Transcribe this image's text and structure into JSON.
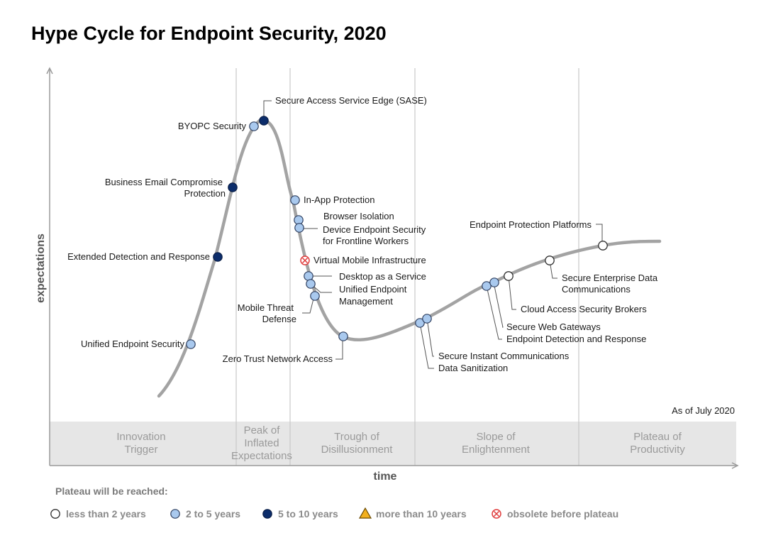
{
  "title": "Hype Cycle for Endpoint Security, 2020",
  "as_of": "As of July 2020",
  "y_axis_label": "expectations",
  "x_axis_label": "time",
  "phases": [
    {
      "lines": [
        "Innovation",
        "Trigger"
      ]
    },
    {
      "lines": [
        "Peak of",
        "Inflated",
        "Expectations"
      ]
    },
    {
      "lines": [
        "Trough of",
        "Disillusionment"
      ]
    },
    {
      "lines": [
        "Slope of",
        "Enlightenment"
      ]
    },
    {
      "lines": [
        "Plateau of",
        "Productivity"
      ]
    }
  ],
  "categories": {
    "lt2": {
      "label": "less than 2 years",
      "color": "#ffffff"
    },
    "2to5": {
      "label": "2 to 5 years",
      "color": "#a9c9ee"
    },
    "5to10": {
      "label": "5 to 10 years",
      "color": "#0c2d6b"
    },
    "gt10": {
      "label": "more than 10 years",
      "color": "#f2b01e"
    },
    "obsolete": {
      "label": "obsolete before plateau",
      "color": "#e03c3c"
    }
  },
  "legend_title": "Plateau will be reached:",
  "technologies": [
    {
      "name": "Unified Endpoint Security",
      "category": "2to5"
    },
    {
      "name": "Extended Detection and Response",
      "category": "5to10"
    },
    {
      "name": "Business Email Compromise Protection",
      "category": "5to10"
    },
    {
      "name": "BYOPC Security",
      "category": "2to5"
    },
    {
      "name": "Secure Access Service Edge (SASE)",
      "category": "5to10"
    },
    {
      "name": "In-App Protection",
      "category": "2to5"
    },
    {
      "name": "Browser Isolation",
      "category": "2to5"
    },
    {
      "name": "Device Endpoint Security for Frontline Workers",
      "category": "2to5"
    },
    {
      "name": "Virtual Mobile Infrastructure",
      "category": "obsolete"
    },
    {
      "name": "Desktop as a Service",
      "category": "2to5"
    },
    {
      "name": "Unified Endpoint Management",
      "category": "2to5"
    },
    {
      "name": "Mobile Threat Defense",
      "category": "2to5"
    },
    {
      "name": "Zero Trust Network Access",
      "category": "2to5"
    },
    {
      "name": "Data Sanitization",
      "category": "2to5"
    },
    {
      "name": "Secure Instant Communications",
      "category": "2to5"
    },
    {
      "name": "Endpoint Detection and Response",
      "category": "2to5"
    },
    {
      "name": "Secure Web Gateways",
      "category": "2to5"
    },
    {
      "name": "Cloud Access Security Brokers",
      "category": "lt2"
    },
    {
      "name": "Secure Enterprise Data Communications",
      "category": "lt2"
    },
    {
      "name": "Endpoint Protection Platforms",
      "category": "lt2"
    }
  ]
}
